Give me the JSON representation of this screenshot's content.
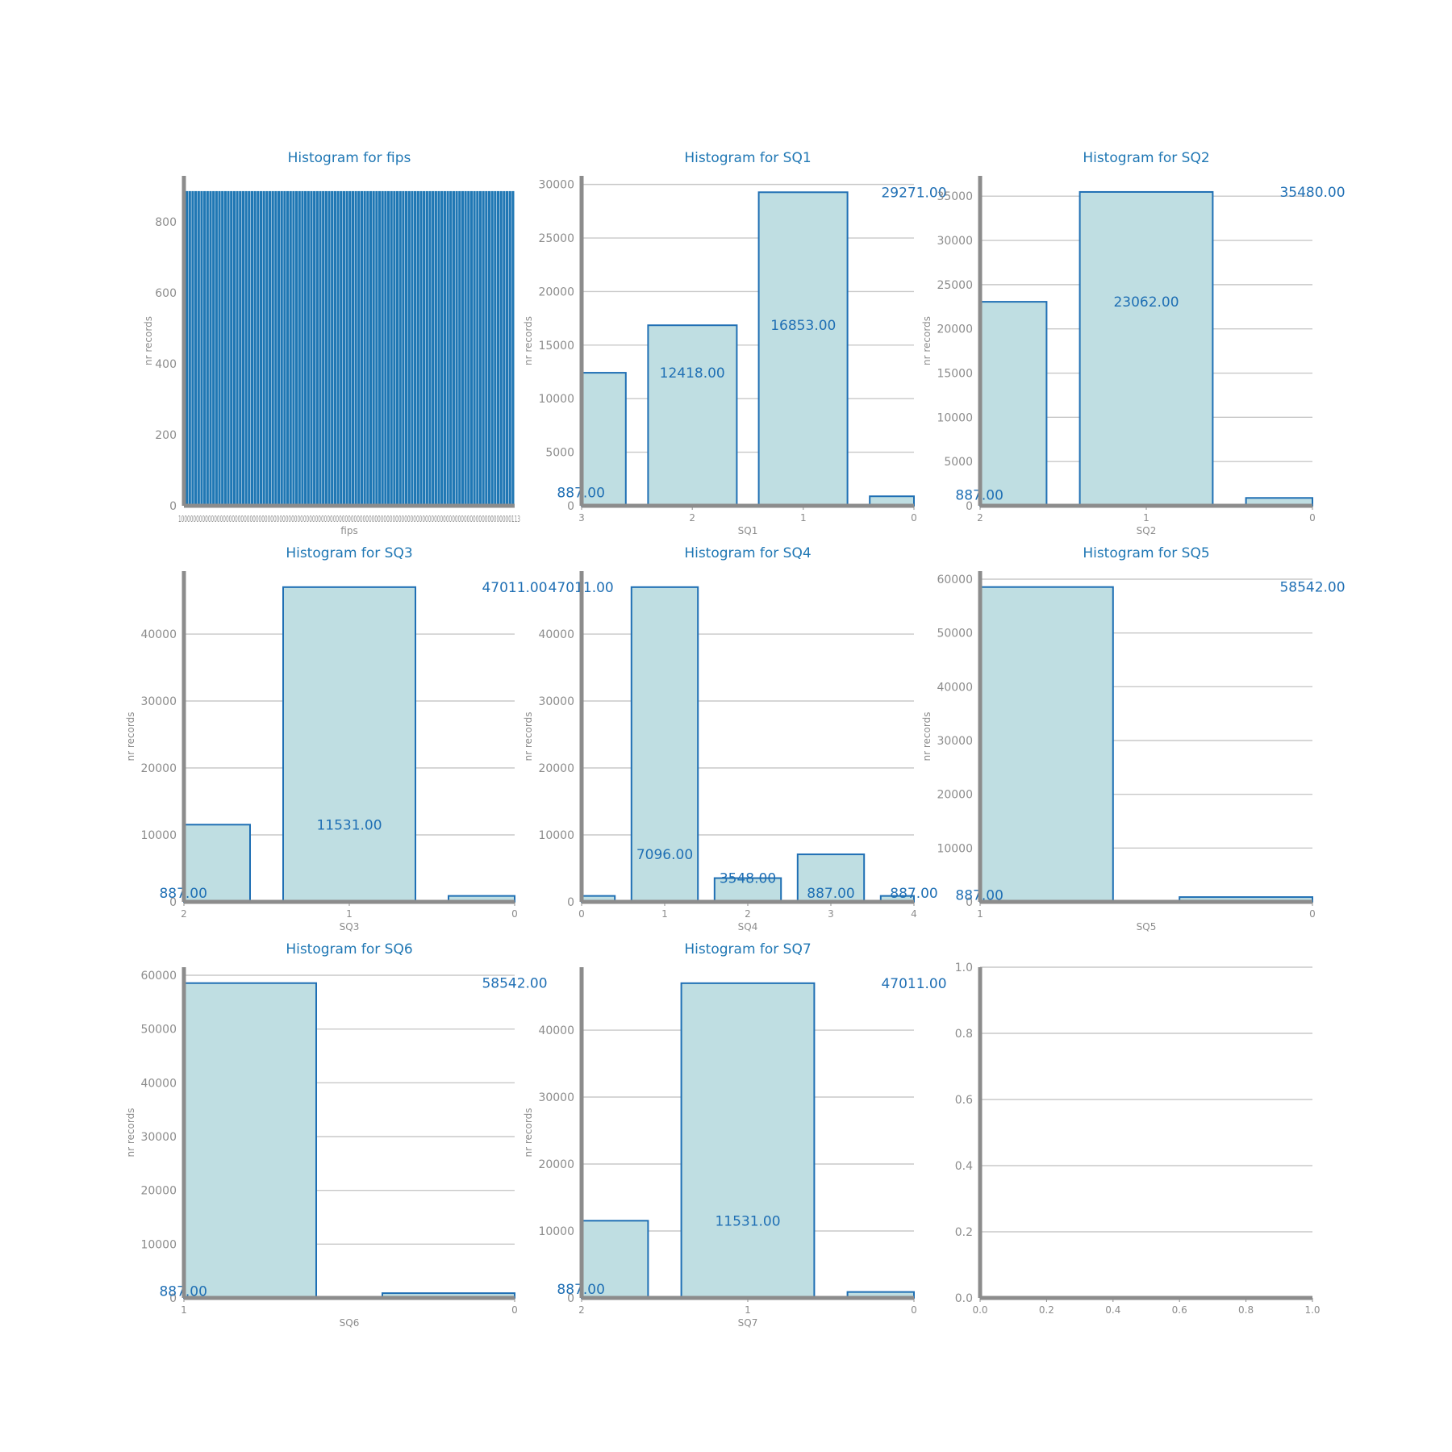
{
  "colors": {
    "title": "#1f77b4",
    "bar_fill": "#bfdee2",
    "bar_edge": "#1f6fb4",
    "fips_bar": "#1f77b4",
    "axis": "#8c8c8c",
    "grid": "#c8c8c8"
  },
  "chart_data": [
    {
      "type": "bar",
      "title": "Histogram for fips",
      "xlabel": "fips",
      "ylabel": "nr records",
      "ylim": [
        0,
        930
      ],
      "yticks": [
        0,
        200,
        400,
        600,
        800
      ],
      "grid": false,
      "bar_count": 111,
      "bar_value": 887,
      "xticks_text": "1000000000000000000000000000000000000000000000000000000000000000000000000000000000000000000000000000000000000000113",
      "categories": [],
      "values": [],
      "labels": []
    },
    {
      "type": "bar",
      "title": "Histogram for SQ1",
      "xlabel": "SQ1",
      "ylabel": "nr records",
      "ylim": [
        0,
        30800
      ],
      "yticks": [
        0,
        5000,
        10000,
        15000,
        20000,
        25000,
        30000
      ],
      "grid": true,
      "categories": [
        "3",
        "2",
        "1",
        "0"
      ],
      "values": [
        12418,
        16853,
        29271,
        887
      ],
      "labels": [
        "887.00",
        "12418.00",
        "16853.00",
        "29271.00"
      ]
    },
    {
      "type": "bar",
      "title": "Histogram for SQ2",
      "xlabel": "SQ2",
      "ylabel": "nr records",
      "ylim": [
        0,
        37300
      ],
      "yticks": [
        0,
        5000,
        10000,
        15000,
        20000,
        25000,
        30000,
        35000
      ],
      "grid": true,
      "categories": [
        "2",
        "1",
        "0"
      ],
      "values": [
        23062,
        35480,
        887
      ],
      "labels": [
        "887.00",
        "23062.00",
        "35480.00"
      ]
    },
    {
      "type": "bar",
      "title": "Histogram for SQ3",
      "xlabel": "SQ3",
      "ylabel": "nr records",
      "ylim": [
        0,
        49400
      ],
      "yticks": [
        0,
        10000,
        20000,
        30000,
        40000
      ],
      "grid": true,
      "categories": [
        "2",
        "1",
        "0"
      ],
      "values": [
        11531,
        47011,
        887
      ],
      "labels": [
        "887.00",
        "11531.00",
        "47011.00"
      ]
    },
    {
      "type": "bar",
      "title": "Histogram for SQ4",
      "xlabel": "SQ4",
      "ylabel": "nr records",
      "ylim": [
        0,
        49400
      ],
      "yticks": [
        0,
        10000,
        20000,
        30000,
        40000
      ],
      "grid": true,
      "categories": [
        "0",
        "1",
        "2",
        "3",
        "4"
      ],
      "values": [
        887,
        47011,
        3548,
        7096,
        887
      ],
      "labels": [
        "47011.00",
        "7096.00",
        "3548.00",
        "887.00",
        "887.00"
      ]
    },
    {
      "type": "bar",
      "title": "Histogram for SQ5",
      "xlabel": "SQ5",
      "ylabel": "nr records",
      "ylim": [
        0,
        61500
      ],
      "yticks": [
        0,
        10000,
        20000,
        30000,
        40000,
        50000,
        60000
      ],
      "grid": true,
      "categories": [
        "1",
        "0"
      ],
      "values": [
        58542,
        887
      ],
      "labels": [
        "887.00",
        "58542.00"
      ]
    },
    {
      "type": "bar",
      "title": "Histogram for SQ6",
      "xlabel": "SQ6",
      "ylabel": "nr records",
      "ylim": [
        0,
        61500
      ],
      "yticks": [
        0,
        10000,
        20000,
        30000,
        40000,
        50000,
        60000
      ],
      "grid": true,
      "categories": [
        "1",
        "0"
      ],
      "values": [
        58542,
        887
      ],
      "labels": [
        "887.00",
        "58542.00"
      ]
    },
    {
      "type": "bar",
      "title": "Histogram for SQ7",
      "xlabel": "SQ7",
      "ylabel": "nr records",
      "ylim": [
        0,
        49400
      ],
      "yticks": [
        0,
        10000,
        20000,
        30000,
        40000
      ],
      "grid": true,
      "categories": [
        "2",
        "1",
        "0"
      ],
      "values": [
        11531,
        47011,
        887
      ],
      "labels": [
        "887.00",
        "11531.00",
        "47011.00"
      ]
    },
    {
      "type": "empty",
      "title": "",
      "xlabel": "",
      "ylabel": "",
      "ylim": [
        0,
        1
      ],
      "xlim": [
        0,
        1
      ],
      "yticks": [
        "0.0",
        "0.2",
        "0.4",
        "0.6",
        "0.8",
        "1.0"
      ],
      "xticks": [
        "0.0",
        "0.2",
        "0.4",
        "0.6",
        "0.8",
        "1.0"
      ],
      "grid": true,
      "categories": [],
      "values": [],
      "labels": []
    }
  ]
}
